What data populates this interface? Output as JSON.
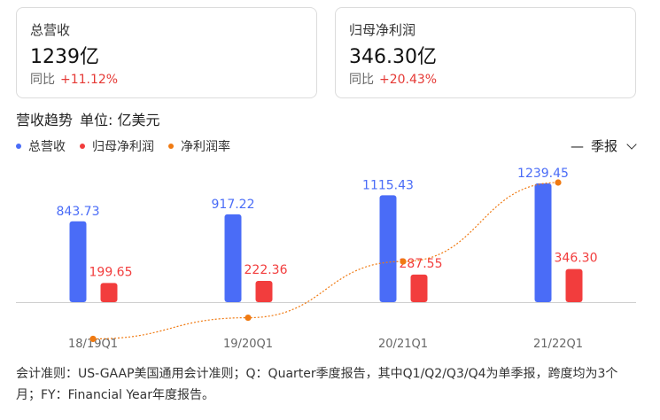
{
  "cards": [
    {
      "label": "总营收",
      "value": "1239亿",
      "yoy_label": "同比",
      "yoy_value": "+11.12%"
    },
    {
      "label": "归母净利润",
      "value": "346.30亿",
      "yoy_label": "同比",
      "yoy_value": "+20.43%"
    }
  ],
  "section": {
    "title": "营收趋势",
    "unit": "单位: 亿美元"
  },
  "period_selector": {
    "value": "季报"
  },
  "footnote": "会计准则：US-GAAP美国通用会计准则；Q：Quarter季度报告，其中Q1/Q2/Q3/Q4为单季报，跨度均为3个月；FY：Financial Year年度报告。",
  "colors": {
    "revenue": "#4a6cf7",
    "net_profit": "#f23d3d",
    "margin": "#f07a12",
    "up": "#e53935"
  },
  "chart_data": {
    "type": "bar",
    "categories": [
      "18/19Q1",
      "19/20Q1",
      "20/21Q1",
      "21/22Q1"
    ],
    "series": [
      {
        "name": "总营收",
        "type": "bar",
        "values": [
          843.73,
          917.22,
          1115.43,
          1239.45
        ]
      },
      {
        "name": "归母净利润",
        "type": "bar",
        "values": [
          199.65,
          222.36,
          287.55,
          346.3
        ]
      },
      {
        "name": "净利润率",
        "type": "line",
        "values": [
          23.66,
          24.24,
          25.78,
          27.94
        ]
      }
    ],
    "legend": "top-left",
    "grid": false
  }
}
